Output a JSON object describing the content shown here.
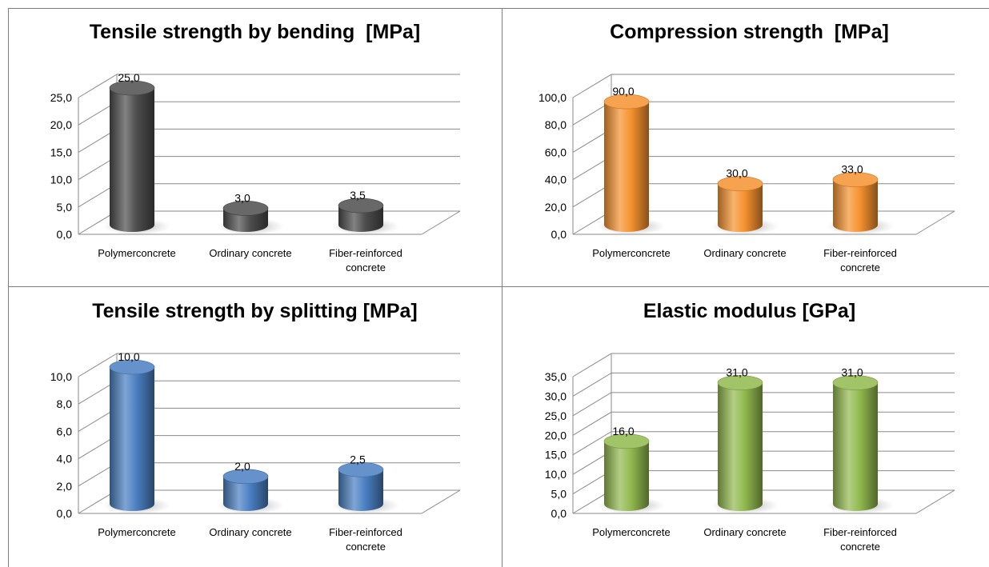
{
  "colors": {
    "bending": "#4d4d4d",
    "compression": "#f5922f",
    "splitting": "#4a7fc1",
    "elastic": "#92b94f",
    "grid": "#8a8a8a"
  },
  "chart_data": [
    {
      "type": "bar",
      "title": "Tensile strength by bending  [MPa]",
      "categories": [
        "Polymerconcrete",
        "Ordinary concrete",
        "Fiber-reinforced concrete"
      ],
      "values": [
        25.0,
        3.0,
        3.5
      ],
      "value_labels": [
        "25,0",
        "3,0",
        "3,5"
      ],
      "ylim": [
        0,
        25
      ],
      "yticks": [
        "0,0",
        "5,0",
        "10,0",
        "15,0",
        "20,0",
        "25,0"
      ],
      "grid": true,
      "legend": "none"
    },
    {
      "type": "bar",
      "title": "Compression strength  [MPa]",
      "categories": [
        "Polymerconcrete",
        "Ordinary concrete",
        "Fiber-reinforced concrete"
      ],
      "values": [
        90.0,
        30.0,
        33.0
      ],
      "value_labels": [
        "90,0",
        "30,0",
        "33,0"
      ],
      "ylim": [
        0,
        100
      ],
      "yticks": [
        "0,0",
        "20,0",
        "40,0",
        "60,0",
        "80,0",
        "100,0"
      ],
      "grid": true,
      "legend": "none"
    },
    {
      "type": "bar",
      "title": "Tensile strength by splitting [MPa]",
      "categories": [
        "Polymerconcrete",
        "Ordinary concrete",
        "Fiber-reinforced concrete"
      ],
      "values": [
        10.0,
        2.0,
        2.5
      ],
      "value_labels": [
        "10,0",
        "2,0",
        "2,5"
      ],
      "ylim": [
        0,
        10
      ],
      "yticks": [
        "0,0",
        "2,0",
        "4,0",
        "6,0",
        "8,0",
        "10,0"
      ],
      "grid": true,
      "legend": "none"
    },
    {
      "type": "bar",
      "title": "Elastic modulus [GPa]",
      "categories": [
        "Polymerconcrete",
        "Ordinary concrete",
        "Fiber-reinforced concrete"
      ],
      "values": [
        16.0,
        31.0,
        31.0
      ],
      "value_labels": [
        "16,0",
        "31,0",
        "31,0"
      ],
      "ylim": [
        0,
        35
      ],
      "yticks": [
        "0,0",
        "5,0",
        "10,0",
        "15,0",
        "20,0",
        "25,0",
        "30,0",
        "35,0"
      ],
      "grid": true,
      "legend": "none"
    }
  ]
}
